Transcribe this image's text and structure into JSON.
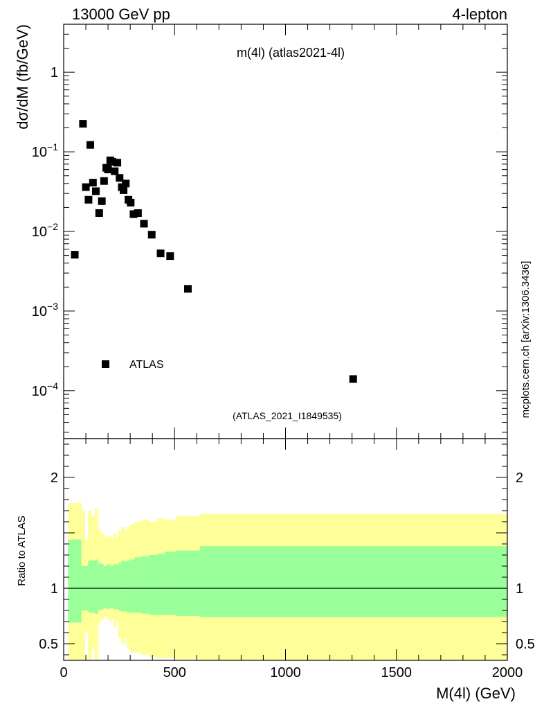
{
  "header": {
    "left": "13000 GeV pp",
    "right": "4-lepton"
  },
  "side_label": "mcplots.cern.ch [arXiv:1306.3436]",
  "chart_data": [
    {
      "type": "scatter",
      "title": "m(4l) (atlas2021-4l)",
      "subtitle": "(ATLAS_2021_I1849535)",
      "ylabel": "dσ/dM (fb/GeV)",
      "yscale": "log",
      "ylim": [
        2.5e-05,
        4
      ],
      "xlim": [
        0,
        2000
      ],
      "yticks": [
        {
          "value": 1,
          "base": "1",
          "exp": ""
        },
        {
          "value": 0.1,
          "base": "10",
          "exp": "−1"
        },
        {
          "value": 0.01,
          "base": "10",
          "exp": "−2"
        },
        {
          "value": 0.001,
          "base": "10",
          "exp": "−3"
        },
        {
          "value": 0.0001,
          "base": "10",
          "exp": "−4"
        }
      ],
      "legend": {
        "label": "ATLAS",
        "position": "bottom-left"
      },
      "series": [
        {
          "name": "ATLAS",
          "color": "#000000",
          "points": [
            {
              "x": 50,
              "y": 0.0051
            },
            {
              "x": 87,
              "y": 0.225
            },
            {
              "x": 100,
              "y": 0.036
            },
            {
              "x": 112,
              "y": 0.025
            },
            {
              "x": 120,
              "y": 0.122
            },
            {
              "x": 132,
              "y": 0.041
            },
            {
              "x": 145,
              "y": 0.032
            },
            {
              "x": 160,
              "y": 0.017
            },
            {
              "x": 172,
              "y": 0.024
            },
            {
              "x": 182,
              "y": 0.043
            },
            {
              "x": 192,
              "y": 0.063
            },
            {
              "x": 200,
              "y": 0.06
            },
            {
              "x": 210,
              "y": 0.078
            },
            {
              "x": 220,
              "y": 0.075
            },
            {
              "x": 230,
              "y": 0.057
            },
            {
              "x": 242,
              "y": 0.073
            },
            {
              "x": 252,
              "y": 0.047
            },
            {
              "x": 262,
              "y": 0.036
            },
            {
              "x": 270,
              "y": 0.033
            },
            {
              "x": 280,
              "y": 0.04
            },
            {
              "x": 292,
              "y": 0.025
            },
            {
              "x": 302,
              "y": 0.023
            },
            {
              "x": 315,
              "y": 0.0165
            },
            {
              "x": 335,
              "y": 0.017
            },
            {
              "x": 362,
              "y": 0.0125
            },
            {
              "x": 397,
              "y": 0.0091
            },
            {
              "x": 437,
              "y": 0.0053
            },
            {
              "x": 480,
              "y": 0.0049
            },
            {
              "x": 560,
              "y": 0.0019
            },
            {
              "x": 1305,
              "y": 0.00014
            }
          ]
        }
      ]
    },
    {
      "type": "area",
      "ylabel": "Ratio to ATLAS",
      "xlabel": "M(4l) (GeV)",
      "xlim": [
        0,
        2000
      ],
      "ylim": [
        0.35,
        2.35
      ],
      "xticks": [
        0,
        500,
        1000,
        1500,
        2000
      ],
      "yticks": [
        {
          "value": 0.5,
          "label": "0.5"
        },
        {
          "value": 1,
          "label": "1"
        },
        {
          "value": 2,
          "label": "2"
        }
      ],
      "reference_line": 1,
      "bands": {
        "edges": [
          20,
          80,
          95,
          110,
          125,
          140,
          155,
          165,
          180,
          195,
          205,
          215,
          225,
          235,
          245,
          260,
          275,
          285,
          300,
          320,
          350,
          385,
          420,
          455,
          505,
          615,
          2000
        ],
        "yellow_color": "#ffff99",
        "green_color": "#99ff99",
        "yellow_upper": [
          1.77,
          1.7,
          1.44,
          1.7,
          1.65,
          1.72,
          1.53,
          1.5,
          1.46,
          1.48,
          1.47,
          1.45,
          1.5,
          1.46,
          1.52,
          1.55,
          1.52,
          1.55,
          1.58,
          1.6,
          1.62,
          1.6,
          1.63,
          1.62,
          1.65,
          1.67
        ],
        "green_upper": [
          1.44,
          1.2,
          1.2,
          1.25,
          1.25,
          1.26,
          1.23,
          1.22,
          1.2,
          1.22,
          1.21,
          1.2,
          1.22,
          1.21,
          1.23,
          1.25,
          1.24,
          1.25,
          1.26,
          1.28,
          1.29,
          1.3,
          1.31,
          1.33,
          1.34,
          1.38
        ],
        "green_lower": [
          0.69,
          0.8,
          0.8,
          0.78,
          0.78,
          0.77,
          0.8,
          0.81,
          0.82,
          0.81,
          0.82,
          0.82,
          0.81,
          0.81,
          0.8,
          0.79,
          0.79,
          0.78,
          0.78,
          0.78,
          0.77,
          0.76,
          0.76,
          0.76,
          0.75,
          0.74
        ],
        "yellow_lower": [
          0.35,
          0.35,
          0.6,
          0.35,
          0.45,
          0.35,
          0.68,
          0.72,
          0.75,
          0.72,
          0.7,
          0.72,
          0.65,
          0.7,
          0.55,
          0.5,
          0.55,
          0.45,
          0.42,
          0.42,
          0.4,
          0.38,
          0.37,
          0.37,
          0.36,
          0.35
        ]
      }
    }
  ]
}
